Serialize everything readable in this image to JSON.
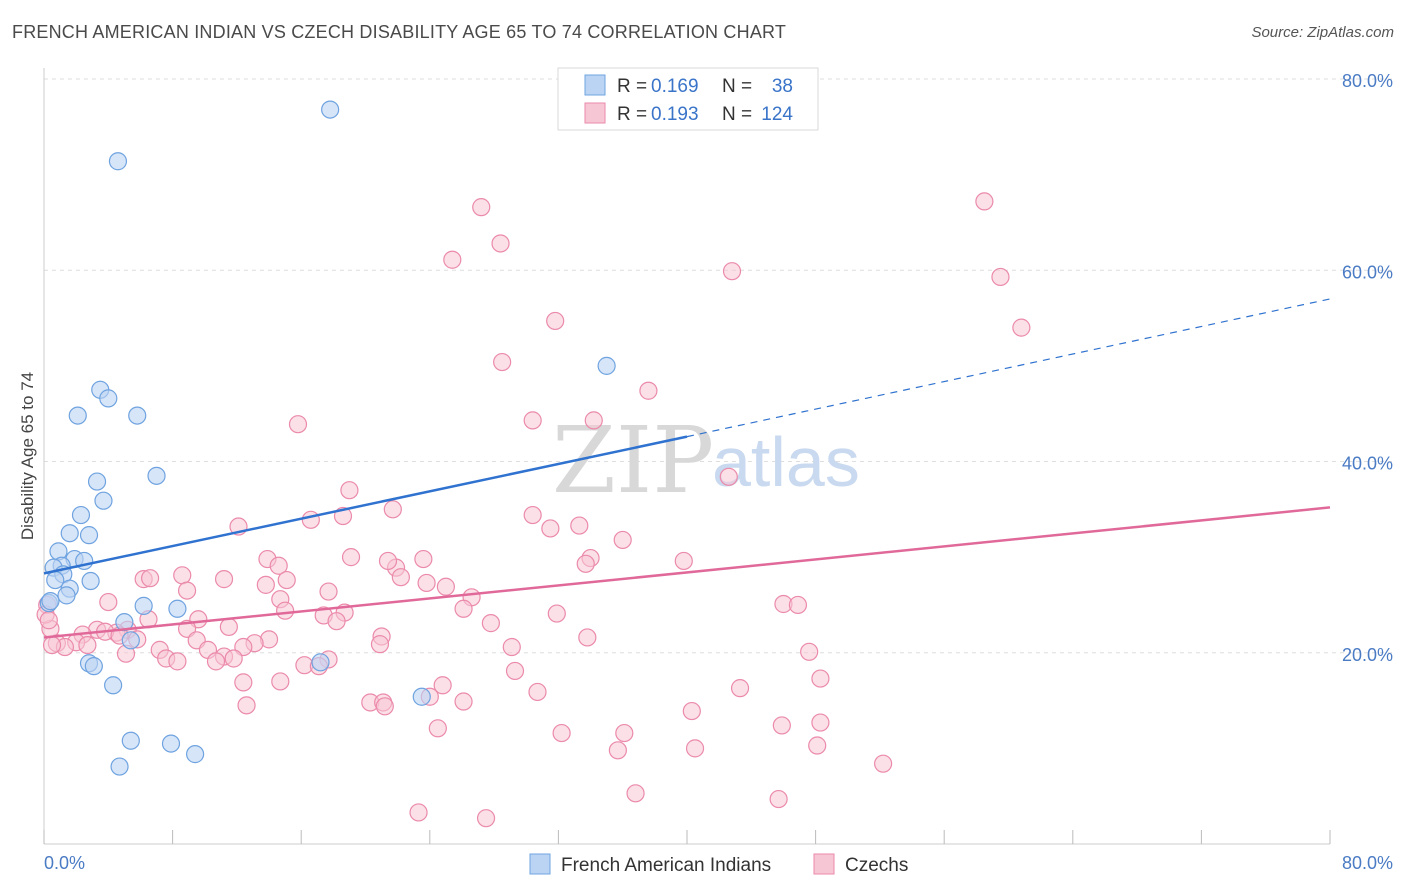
{
  "title": "FRENCH AMERICAN INDIAN VS CZECH DISABILITY AGE 65 TO 74 CORRELATION CHART",
  "source": "Source: ZipAtlas.com",
  "colors": {
    "blue": "#6fa3e0",
    "blue_fill": "#bcd4f3",
    "blue_line": "#2f72cf",
    "pink": "#eb8aaa",
    "pink_fill": "#f7c6d5",
    "pink_line": "#e0699a",
    "tick_text": "#4a7bc4"
  },
  "legend": {
    "rows": [
      {
        "r_label": "R =",
        "r_value": "0.169",
        "n_label": "N =",
        "n_value": "38"
      },
      {
        "r_label": "R =",
        "r_value": "0.193",
        "n_label": "N =",
        "n_value": "124"
      }
    ]
  },
  "bottom_legend": [
    "French American Indians",
    "Czechs"
  ],
  "watermark": {
    "zip": "ZIP",
    "atlas": "atlas"
  },
  "chart_data": {
    "type": "scatter",
    "xlabel": "",
    "ylabel": "Disability Age 65 to 74",
    "xlim": [
      0,
      80
    ],
    "ylim": [
      0,
      80
    ],
    "x_tick_labels": [
      "0.0%",
      "80.0%"
    ],
    "y_ticks": [
      20,
      40,
      60,
      80
    ],
    "y_tick_labels": [
      "20.0%",
      "40.0%",
      "60.0%",
      "80.0%"
    ],
    "grid": true,
    "legend_position": "top-center",
    "series": [
      {
        "name": "French American Indians",
        "R": 0.169,
        "N": 38,
        "trend": {
          "x0": 0,
          "y0": 28.3,
          "x1": 40,
          "y1": 42.6,
          "dashed_to_x": 80,
          "dashed_to_y": 57.0
        },
        "points": [
          [
            17.8,
            76.8
          ],
          [
            4.6,
            71.4
          ],
          [
            3.5,
            47.5
          ],
          [
            4.0,
            46.6
          ],
          [
            2.1,
            44.8
          ],
          [
            5.8,
            44.8
          ],
          [
            3.3,
            37.9
          ],
          [
            7.0,
            38.5
          ],
          [
            3.7,
            35.9
          ],
          [
            2.3,
            34.4
          ],
          [
            1.6,
            32.5
          ],
          [
            2.8,
            32.3
          ],
          [
            0.9,
            30.6
          ],
          [
            1.9,
            29.8
          ],
          [
            2.5,
            29.6
          ],
          [
            1.1,
            29.1
          ],
          [
            0.6,
            28.9
          ],
          [
            1.2,
            28.2
          ],
          [
            0.7,
            27.6
          ],
          [
            2.9,
            27.5
          ],
          [
            1.6,
            26.7
          ],
          [
            1.4,
            26.0
          ],
          [
            0.3,
            25.2
          ],
          [
            6.2,
            24.9
          ],
          [
            8.3,
            24.6
          ],
          [
            5.0,
            23.2
          ],
          [
            5.4,
            21.3
          ],
          [
            2.8,
            18.9
          ],
          [
            3.1,
            18.6
          ],
          [
            17.2,
            19.0
          ],
          [
            4.3,
            16.6
          ],
          [
            23.5,
            15.4
          ],
          [
            5.4,
            10.8
          ],
          [
            7.9,
            10.5
          ],
          [
            9.4,
            9.4
          ],
          [
            4.7,
            8.1
          ],
          [
            0.4,
            25.4
          ],
          [
            35.0,
            50.0
          ]
        ]
      },
      {
        "name": "Czechs",
        "R": 0.193,
        "N": 124,
        "trend": {
          "x0": 0,
          "y0": 21.6,
          "x1": 80,
          "y1": 35.2
        },
        "points": [
          [
            58.5,
            67.2
          ],
          [
            27.2,
            66.6
          ],
          [
            28.4,
            62.8
          ],
          [
            25.4,
            61.1
          ],
          [
            42.8,
            59.9
          ],
          [
            59.5,
            59.3
          ],
          [
            31.8,
            54.7
          ],
          [
            60.8,
            54.0
          ],
          [
            28.5,
            50.4
          ],
          [
            37.6,
            47.4
          ],
          [
            15.8,
            43.9
          ],
          [
            30.4,
            44.3
          ],
          [
            34.2,
            44.3
          ],
          [
            42.6,
            38.4
          ],
          [
            19.0,
            37.0
          ],
          [
            21.7,
            35.0
          ],
          [
            30.4,
            34.4
          ],
          [
            18.6,
            34.3
          ],
          [
            16.6,
            33.9
          ],
          [
            12.1,
            33.2
          ],
          [
            31.5,
            33.0
          ],
          [
            33.3,
            33.3
          ],
          [
            36.0,
            31.8
          ],
          [
            19.1,
            30.0
          ],
          [
            13.9,
            29.8
          ],
          [
            23.6,
            29.8
          ],
          [
            39.8,
            29.6
          ],
          [
            34.0,
            29.9
          ],
          [
            33.7,
            29.3
          ],
          [
            14.6,
            29.1
          ],
          [
            21.9,
            28.9
          ],
          [
            21.4,
            29.6
          ],
          [
            8.6,
            28.1
          ],
          [
            6.2,
            27.7
          ],
          [
            6.6,
            27.8
          ],
          [
            11.2,
            27.7
          ],
          [
            22.2,
            27.9
          ],
          [
            15.1,
            27.6
          ],
          [
            13.8,
            27.1
          ],
          [
            23.8,
            27.3
          ],
          [
            25.0,
            26.9
          ],
          [
            8.9,
            26.5
          ],
          [
            17.7,
            26.4
          ],
          [
            26.6,
            25.8
          ],
          [
            14.7,
            25.6
          ],
          [
            4.0,
            25.3
          ],
          [
            46.0,
            25.1
          ],
          [
            46.9,
            25.0
          ],
          [
            26.1,
            24.6
          ],
          [
            15.0,
            24.4
          ],
          [
            18.7,
            24.2
          ],
          [
            31.9,
            24.1
          ],
          [
            17.4,
            23.9
          ],
          [
            18.2,
            23.3
          ],
          [
            9.6,
            23.5
          ],
          [
            6.5,
            23.5
          ],
          [
            27.8,
            23.1
          ],
          [
            11.5,
            22.7
          ],
          [
            8.9,
            22.5
          ],
          [
            5.2,
            22.4
          ],
          [
            3.3,
            22.4
          ],
          [
            4.5,
            22.1
          ],
          [
            2.4,
            21.9
          ],
          [
            3.8,
            22.2
          ],
          [
            4.7,
            21.8
          ],
          [
            21.0,
            21.7
          ],
          [
            33.8,
            21.6
          ],
          [
            14.0,
            21.4
          ],
          [
            5.8,
            21.4
          ],
          [
            9.5,
            21.3
          ],
          [
            2.0,
            21.1
          ],
          [
            0.8,
            21.0
          ],
          [
            13.1,
            21.0
          ],
          [
            2.7,
            20.8
          ],
          [
            12.4,
            20.6
          ],
          [
            1.3,
            20.6
          ],
          [
            20.9,
            20.9
          ],
          [
            7.2,
            20.3
          ],
          [
            10.2,
            20.3
          ],
          [
            29.1,
            20.6
          ],
          [
            47.6,
            20.1
          ],
          [
            5.1,
            19.9
          ],
          [
            11.2,
            19.6
          ],
          [
            11.8,
            19.4
          ],
          [
            7.6,
            19.4
          ],
          [
            8.3,
            19.1
          ],
          [
            10.7,
            19.1
          ],
          [
            17.7,
            19.3
          ],
          [
            16.2,
            18.7
          ],
          [
            17.1,
            18.6
          ],
          [
            29.3,
            18.1
          ],
          [
            48.3,
            17.3
          ],
          [
            12.4,
            16.9
          ],
          [
            14.7,
            17.0
          ],
          [
            24.8,
            16.6
          ],
          [
            43.3,
            16.3
          ],
          [
            30.7,
            15.9
          ],
          [
            24.0,
            15.4
          ],
          [
            20.3,
            14.8
          ],
          [
            21.1,
            14.8
          ],
          [
            26.1,
            14.9
          ],
          [
            12.6,
            14.5
          ],
          [
            21.2,
            14.4
          ],
          [
            40.3,
            13.9
          ],
          [
            48.3,
            12.7
          ],
          [
            45.9,
            12.4
          ],
          [
            24.5,
            12.1
          ],
          [
            32.2,
            11.6
          ],
          [
            36.1,
            11.6
          ],
          [
            35.7,
            9.8
          ],
          [
            40.5,
            10.0
          ],
          [
            48.1,
            10.3
          ],
          [
            52.2,
            8.4
          ],
          [
            36.8,
            5.3
          ],
          [
            45.7,
            4.7
          ],
          [
            23.3,
            3.3
          ],
          [
            27.5,
            2.7
          ],
          [
            0.2,
            25.0
          ],
          [
            0.4,
            22.5
          ],
          [
            0.1,
            24.0
          ],
          [
            0.5,
            20.8
          ],
          [
            0.3,
            23.4
          ]
        ]
      }
    ]
  }
}
